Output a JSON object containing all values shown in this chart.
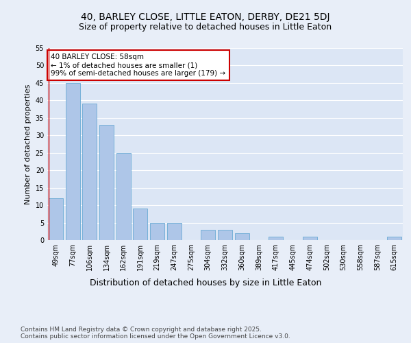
{
  "title1": "40, BARLEY CLOSE, LITTLE EATON, DERBY, DE21 5DJ",
  "title2": "Size of property relative to detached houses in Little Eaton",
  "xlabel": "Distribution of detached houses by size in Little Eaton",
  "ylabel": "Number of detached properties",
  "categories": [
    "49sqm",
    "77sqm",
    "106sqm",
    "134sqm",
    "162sqm",
    "191sqm",
    "219sqm",
    "247sqm",
    "275sqm",
    "304sqm",
    "332sqm",
    "360sqm",
    "389sqm",
    "417sqm",
    "445sqm",
    "474sqm",
    "502sqm",
    "530sqm",
    "558sqm",
    "587sqm",
    "615sqm"
  ],
  "values": [
    12,
    45,
    39,
    33,
    25,
    9,
    5,
    5,
    0,
    3,
    3,
    2,
    0,
    1,
    0,
    1,
    0,
    0,
    0,
    0,
    1
  ],
  "bar_color": "#aec6e8",
  "bar_edge_color": "#6aaad4",
  "annotation_text": "40 BARLEY CLOSE: 58sqm\n← 1% of detached houses are smaller (1)\n99% of semi-detached houses are larger (179) →",
  "annotation_box_color": "#ffffff",
  "annotation_box_edge_color": "#cc0000",
  "red_line_color": "#cc0000",
  "ylim": [
    0,
    55
  ],
  "yticks": [
    0,
    5,
    10,
    15,
    20,
    25,
    30,
    35,
    40,
    45,
    50,
    55
  ],
  "footer_text": "Contains HM Land Registry data © Crown copyright and database right 2025.\nContains public sector information licensed under the Open Government Licence v3.0.",
  "background_color": "#e8eef8",
  "plot_bg_color": "#dce6f5",
  "grid_color": "#ffffff",
  "title1_fontsize": 10,
  "title2_fontsize": 9,
  "xlabel_fontsize": 9,
  "ylabel_fontsize": 8,
  "tick_fontsize": 7,
  "annotation_fontsize": 7.5,
  "footer_fontsize": 6.5
}
